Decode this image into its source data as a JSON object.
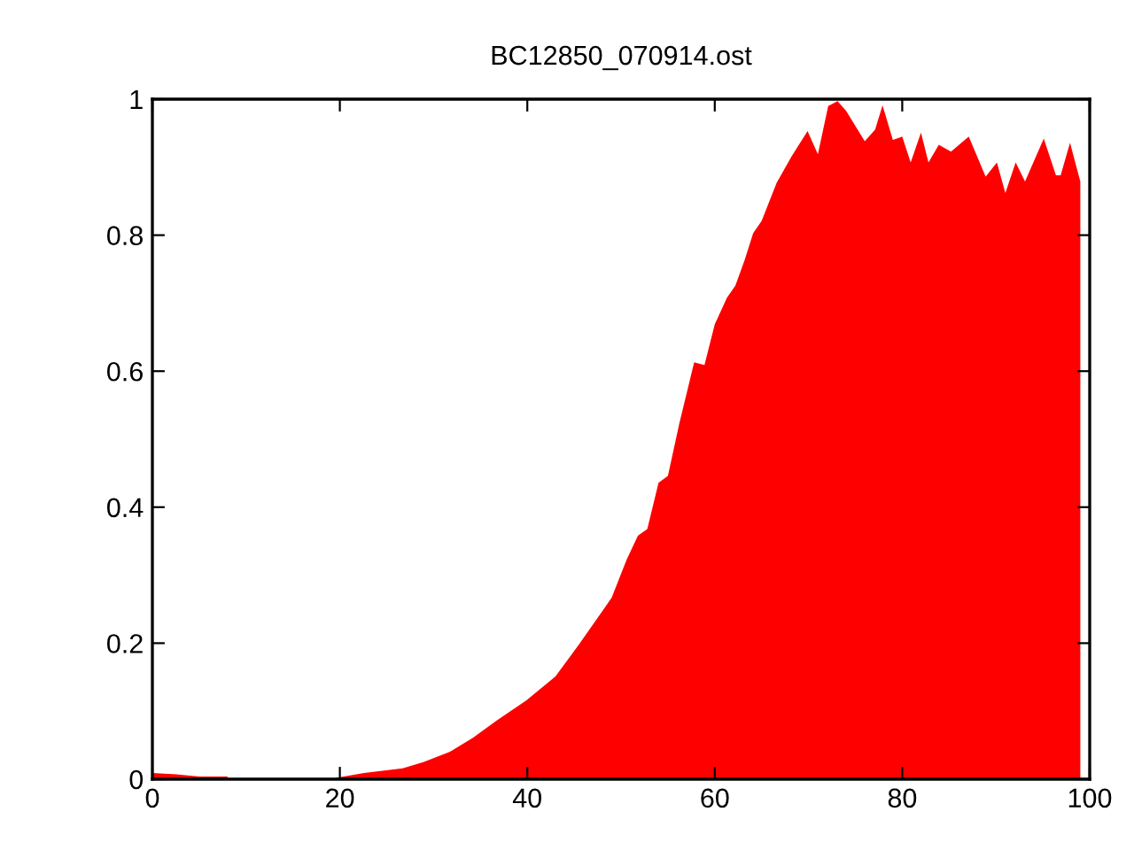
{
  "chart_data": {
    "type": "area",
    "title": "BC12850_070914.ost",
    "x": [
      0,
      2.5,
      5,
      8,
      8.1,
      19.5,
      19.6,
      22.6,
      26.7,
      28.9,
      31.7,
      34.2,
      36.7,
      39.9,
      43,
      45.5,
      48.1,
      49,
      50.6,
      51.8,
      52.8,
      54,
      55,
      56.2,
      57.8,
      58.9,
      60,
      61.3,
      62.2,
      63.2,
      64.1,
      65,
      66.6,
      68.2,
      69.9,
      71,
      72.1,
      73.1,
      74,
      76,
      77.1,
      77.9,
      79,
      80,
      80.9,
      82,
      82.8,
      83.9,
      85.2,
      87.1,
      88.9,
      90.1,
      91,
      92.1,
      93.1,
      95.1,
      96.4,
      96.9,
      97.9,
      99
    ],
    "series": [
      {
        "color": "#ff0000",
        "values": [
          0.009,
          0.007,
          0.004,
          0.004,
          0,
          0,
          0.002,
          0.009,
          0.016,
          0.025,
          0.04,
          0.061,
          0.086,
          0.116,
          0.151,
          0.198,
          0.249,
          0.267,
          0.323,
          0.358,
          0.368,
          0.436,
          0.446,
          0.522,
          0.613,
          0.609,
          0.669,
          0.708,
          0.726,
          0.764,
          0.803,
          0.821,
          0.877,
          0.916,
          0.953,
          0.919,
          0.99,
          0.997,
          0.983,
          0.938,
          0.955,
          0.991,
          0.94,
          0.945,
          0.907,
          0.951,
          0.907,
          0.933,
          0.923,
          0.945,
          0.886,
          0.907,
          0.862,
          0.907,
          0.879,
          0.942,
          0.888,
          0.888,
          0.936,
          0.879
        ]
      }
    ],
    "xlim": [
      0,
      100
    ],
    "xticks": [
      0,
      20,
      40,
      60,
      80,
      100
    ],
    "ylim": [
      0,
      1
    ],
    "yticks": [
      0,
      0.2,
      0.4,
      0.6,
      0.8,
      1
    ],
    "grid": false,
    "legend": false
  }
}
